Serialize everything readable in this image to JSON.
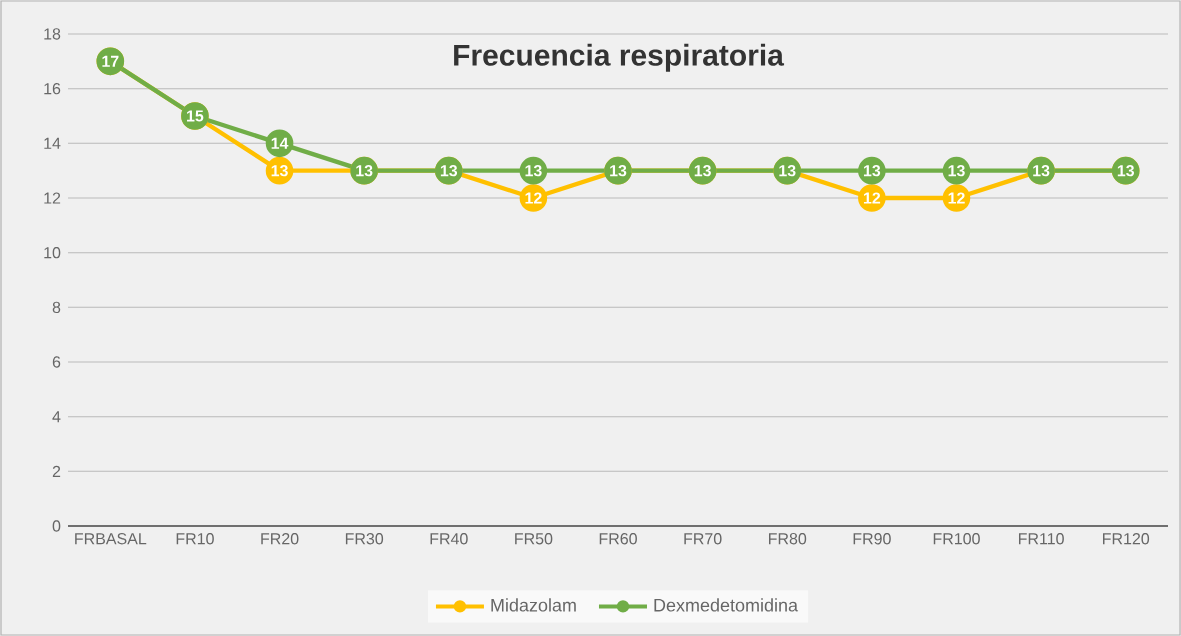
{
  "chart_data": {
    "type": "line",
    "title": "Frecuencia respiratoria",
    "categories": [
      "FRBASAL",
      "FR10",
      "FR20",
      "FR30",
      "FR40",
      "FR50",
      "FR60",
      "FR70",
      "FR80",
      "FR90",
      "FR100",
      "FR110",
      "FR120"
    ],
    "series": [
      {
        "name": "Midazolam",
        "color": "#ffc000",
        "values": [
          17,
          15,
          13,
          13,
          13,
          12,
          13,
          13,
          13,
          12,
          12,
          13,
          13
        ],
        "value_labels": [
          null,
          null,
          "13",
          null,
          null,
          "12",
          null,
          null,
          null,
          "12",
          "12",
          null,
          null
        ]
      },
      {
        "name": "Dexmedetomidina",
        "color": "#70ad47",
        "values": [
          17,
          15,
          14,
          13,
          13,
          13,
          13,
          13,
          13,
          13,
          13,
          13,
          13
        ],
        "value_labels": [
          "17",
          "15",
          "14",
          "13",
          "13",
          "13",
          "13",
          "13",
          "13",
          "13",
          "13",
          "13",
          "13"
        ]
      }
    ],
    "ylim": [
      0,
      18
    ],
    "yticks": [
      0,
      2,
      4,
      6,
      8,
      10,
      12,
      14,
      16,
      18
    ],
    "grid": "y",
    "legend": "bottom",
    "marker": "circle",
    "line_style": "solid"
  }
}
